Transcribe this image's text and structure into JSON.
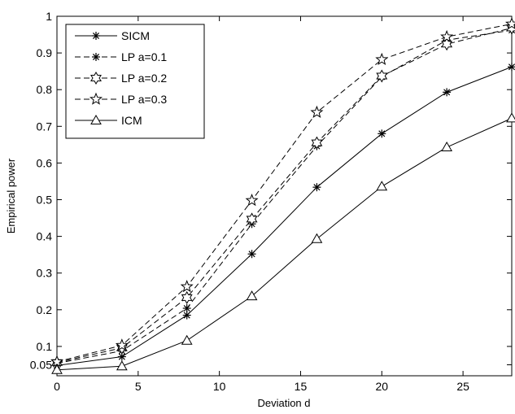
{
  "chart_data": {
    "type": "line",
    "title": "",
    "xlabel": "Deviation d",
    "ylabel": "Empirical power",
    "xlim": [
      0,
      28
    ],
    "ylim": [
      0.02,
      1
    ],
    "xticks": [
      0,
      5,
      10,
      15,
      20,
      25
    ],
    "yticks": [
      0.05,
      0.1,
      0.2,
      0.3,
      0.4,
      0.5,
      0.6,
      0.7,
      0.8,
      0.9,
      1
    ],
    "ytick_labels": [
      "0.05",
      "0.1",
      "0.2",
      "0.3",
      "0.4",
      "0.5",
      "0.6",
      "0.7",
      "0.8",
      "0.9",
      "1"
    ],
    "grid": false,
    "legend_position": "top-left",
    "x": [
      0,
      4,
      8,
      12,
      16,
      20,
      24,
      28
    ],
    "series": [
      {
        "name": "SICM",
        "marker": "asterisk",
        "dash": "solid",
        "values": [
          0.048,
          0.072,
          0.185,
          0.352,
          0.534,
          0.68,
          0.793,
          0.862
        ]
      },
      {
        "name": "LP a=0.1",
        "marker": "asterisk",
        "dash": "dashed",
        "values": [
          0.054,
          0.088,
          0.204,
          0.434,
          0.646,
          0.835,
          0.935,
          0.962
        ]
      },
      {
        "name": "LP a=0.2",
        "marker": "hexagram",
        "dash": "dashed",
        "values": [
          0.056,
          0.096,
          0.233,
          0.447,
          0.655,
          0.837,
          0.924,
          0.968
        ]
      },
      {
        "name": "LP a=0.3",
        "marker": "pentagram",
        "dash": "dashed",
        "values": [
          0.058,
          0.103,
          0.263,
          0.498,
          0.738,
          0.882,
          0.944,
          0.979
        ]
      },
      {
        "name": "ICM",
        "marker": "triangle",
        "dash": "solid",
        "values": [
          0.036,
          0.046,
          0.116,
          0.237,
          0.393,
          0.536,
          0.643,
          0.722
        ]
      }
    ]
  }
}
